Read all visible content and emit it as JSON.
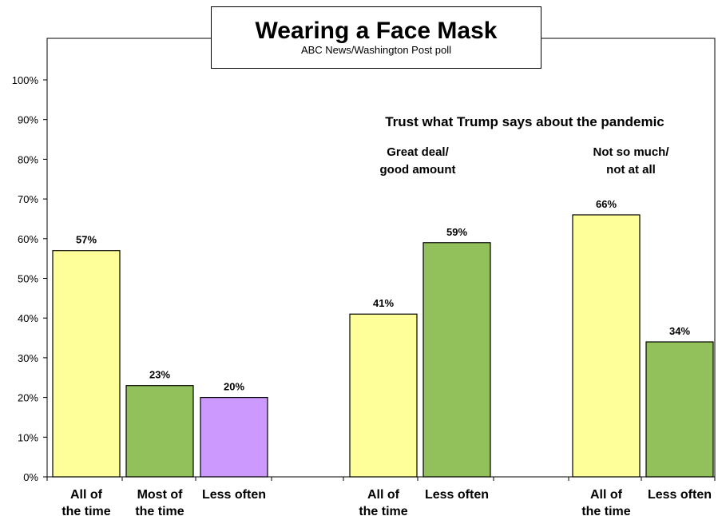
{
  "chart_data": {
    "type": "bar",
    "title": "Wearing a Face Mask",
    "subtitle": "ABC News/Washington Post poll",
    "ylim": [
      0,
      100
    ],
    "yticks": [
      "0%",
      "10%",
      "20%",
      "30%",
      "40%",
      "50%",
      "60%",
      "70%",
      "80%",
      "90%",
      "100%"
    ],
    "annotation_main": "Trust what Trump says about the pandemic",
    "groups": [
      {
        "name_lines": [],
        "bars": [
          {
            "category_lines": [
              "All of",
              "the time"
            ],
            "value": 57,
            "label": "57%",
            "color": "#ffff99"
          },
          {
            "category_lines": [
              "Most of",
              "the time"
            ],
            "value": 23,
            "label": "23%",
            "color": "#92c05a"
          },
          {
            "category_lines": [
              "Less often"
            ],
            "value": 20,
            "label": "20%",
            "color": "#cc99ff"
          }
        ]
      },
      {
        "name_lines": [
          "Great deal/",
          "good amount"
        ],
        "bars": [
          {
            "category_lines": [
              "All of",
              "the time"
            ],
            "value": 41,
            "label": "41%",
            "color": "#ffff99"
          },
          {
            "category_lines": [
              "Less often"
            ],
            "value": 59,
            "label": "59%",
            "color": "#92c05a"
          }
        ]
      },
      {
        "name_lines": [
          "Not so much/",
          "not at all"
        ],
        "bars": [
          {
            "category_lines": [
              "All of",
              "the time"
            ],
            "value": 66,
            "label": "66%",
            "color": "#ffff99"
          },
          {
            "category_lines": [
              "Less often"
            ],
            "value": 34,
            "label": "34%",
            "color": "#92c05a"
          }
        ]
      }
    ]
  }
}
